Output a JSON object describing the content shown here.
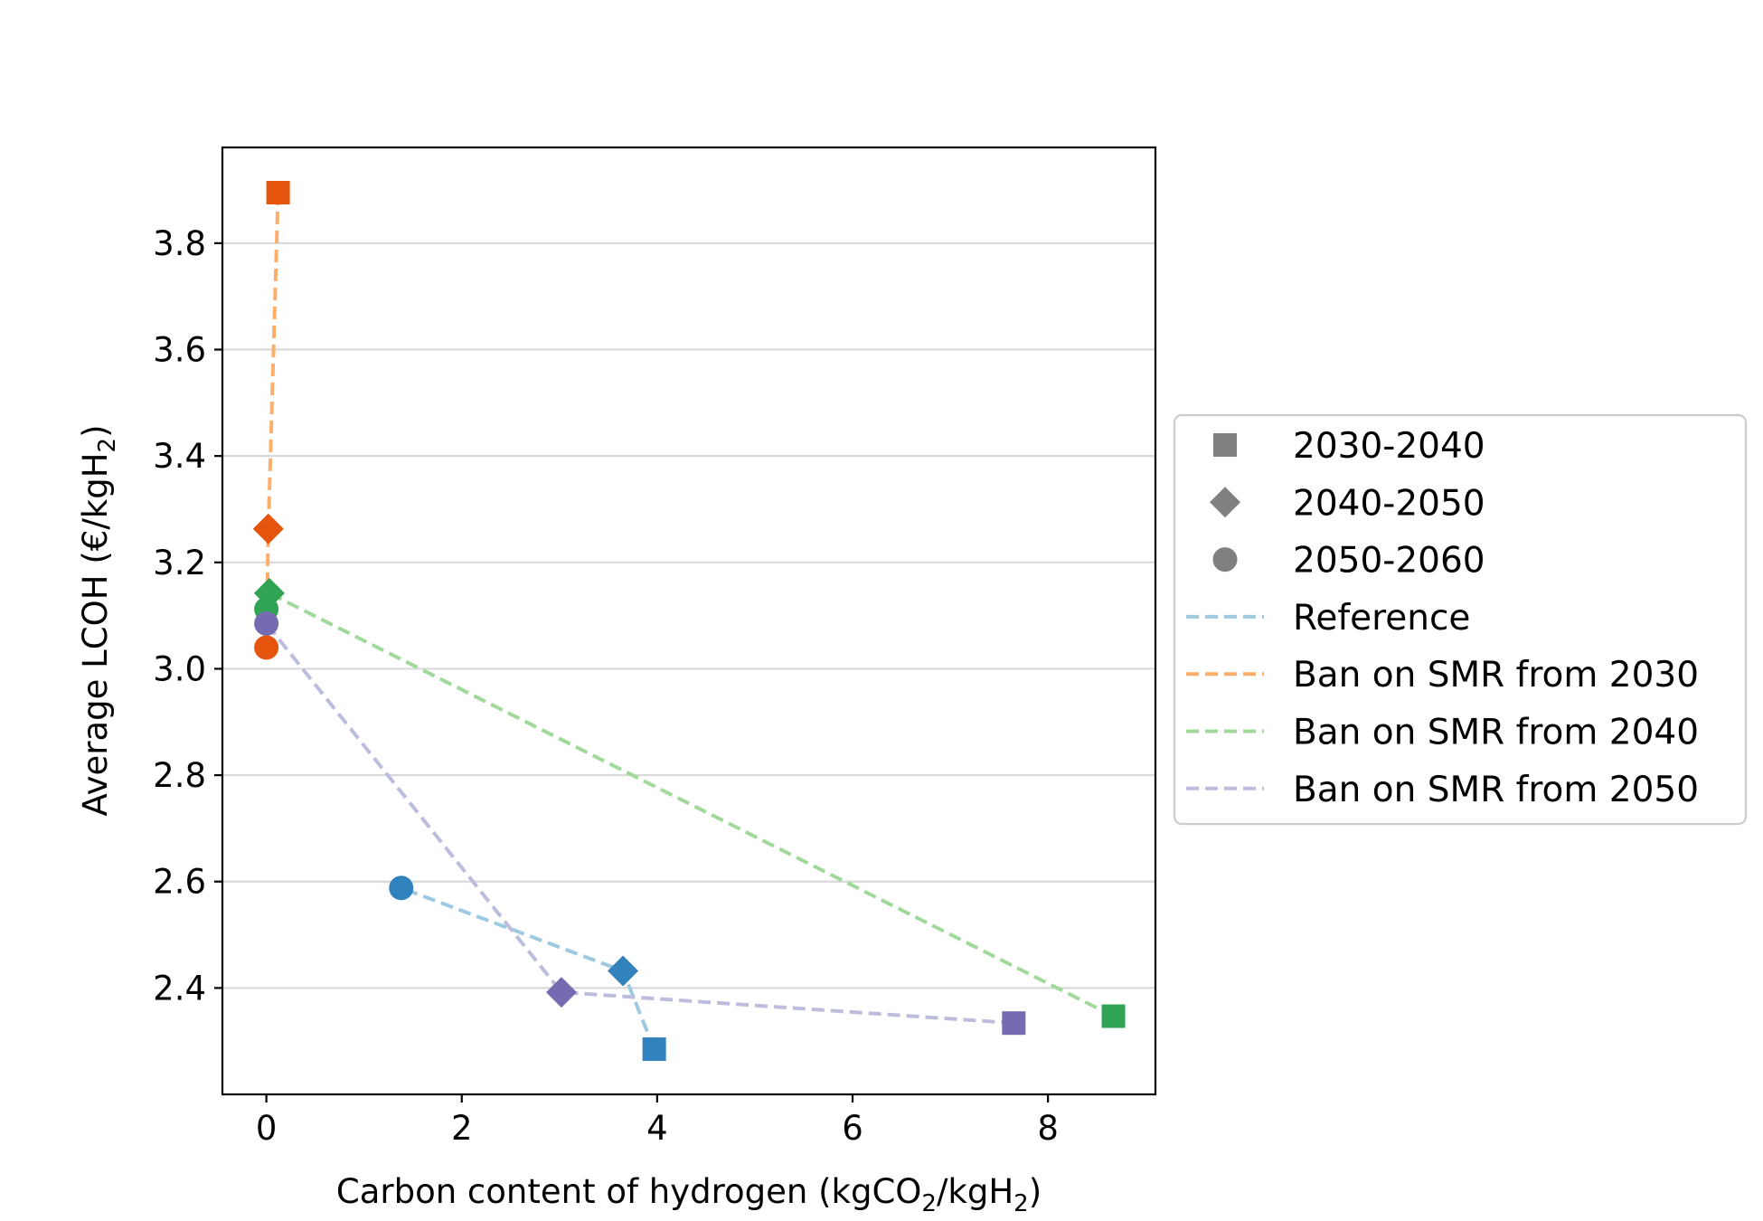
{
  "chart_data": {
    "type": "scatter",
    "title": "",
    "xlabel": {
      "pre": "Carbon content of hydrogen (kgCO",
      "sub1": "2",
      "mid": "/kgH",
      "sub2": "2",
      "post": ")"
    },
    "ylabel": {
      "pre": "Average LCOH (€/kgH",
      "sub": "2",
      "post": ")"
    },
    "xlim": [
      -0.45,
      9.1
    ],
    "ylim": [
      2.2,
      3.98
    ],
    "xticks": [
      0,
      2,
      4,
      6,
      8
    ],
    "yticks": [
      2.4,
      2.6,
      2.8,
      3.0,
      3.2,
      3.4,
      3.6,
      3.8
    ],
    "ytick_labels": [
      "2.4",
      "2.6",
      "2.8",
      "3.0",
      "3.2",
      "3.4",
      "3.6",
      "3.8"
    ],
    "grid": "horizontal",
    "legend_position": "right",
    "period_markers": [
      {
        "label": "2030-2040",
        "marker": "square"
      },
      {
        "label": "2040-2050",
        "marker": "diamond"
      },
      {
        "label": "2050-2060",
        "marker": "circle"
      }
    ],
    "series": [
      {
        "name": "Reference",
        "color": "#3182bd",
        "line_color": "#9ecae1",
        "points": [
          {
            "x": 3.97,
            "y": 2.285
          },
          {
            "x": 3.65,
            "y": 2.432
          },
          {
            "x": 1.38,
            "y": 2.588
          }
        ]
      },
      {
        "name": "Ban on SMR from 2030",
        "color": "#e6550d",
        "line_color": "#fdae6b",
        "points": [
          {
            "x": 0.12,
            "y": 3.895
          },
          {
            "x": 0.02,
            "y": 3.263
          },
          {
            "x": 0.0,
            "y": 3.04
          }
        ]
      },
      {
        "name": "Ban on SMR from 2040",
        "color": "#31a354",
        "line_color": "#a1d99b",
        "points": [
          {
            "x": 8.67,
            "y": 2.347
          },
          {
            "x": 0.03,
            "y": 3.142
          },
          {
            "x": 0.0,
            "y": 3.112
          }
        ]
      },
      {
        "name": "Ban on SMR from 2050",
        "color": "#756bb1",
        "line_color": "#bcbddc",
        "points": [
          {
            "x": 7.65,
            "y": 2.334
          },
          {
            "x": 3.02,
            "y": 2.392
          },
          {
            "x": 0.0,
            "y": 3.085
          }
        ]
      }
    ],
    "marker_legend_color": "#808080"
  }
}
